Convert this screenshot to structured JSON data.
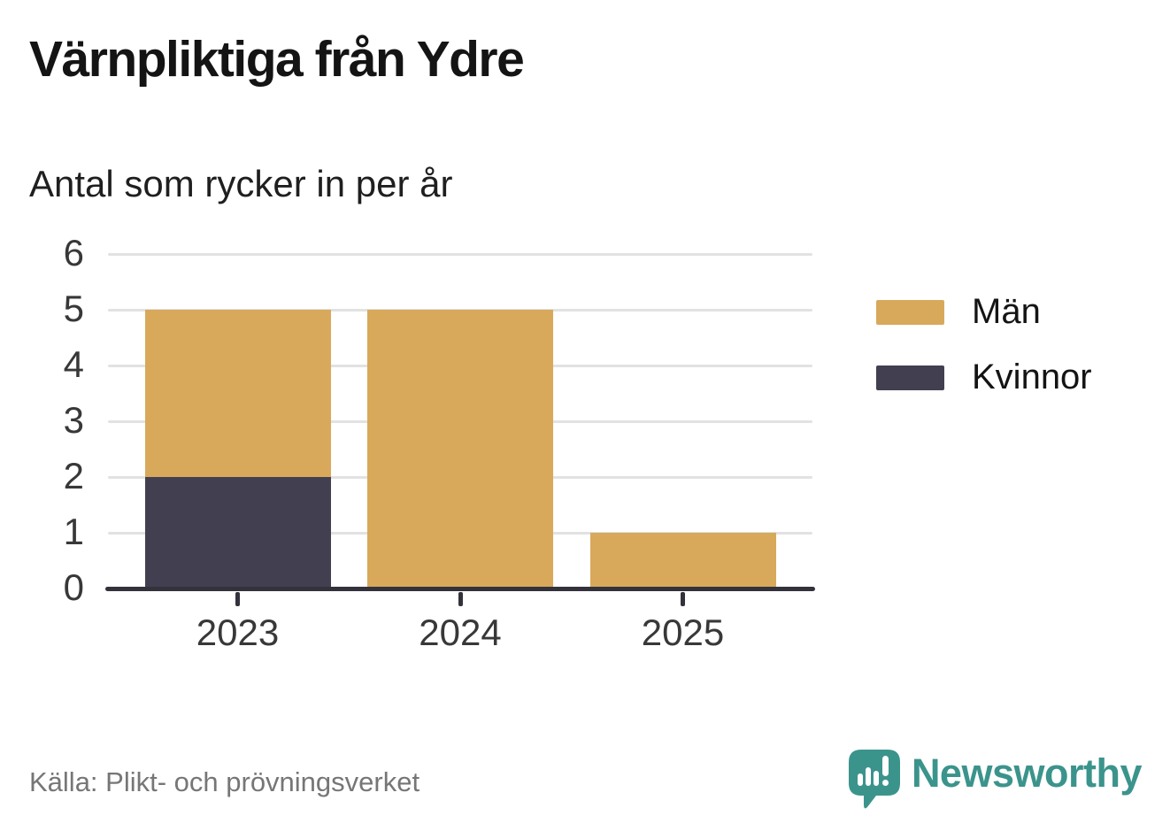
{
  "header": {
    "title": "Värnpliktiga från Ydre",
    "subtitle": "Antal som rycker in per år"
  },
  "chart_data": {
    "type": "bar",
    "stacked": true,
    "categories": [
      "2023",
      "2024",
      "2025"
    ],
    "series": [
      {
        "name": "Män",
        "color": "#d8a95b",
        "values": [
          3,
          5,
          1
        ]
      },
      {
        "name": "Kvinnor",
        "color": "#423f50",
        "values": [
          2,
          0,
          0
        ]
      }
    ],
    "stack_totals": [
      5,
      5,
      1
    ],
    "title": "Värnpliktiga från Ydre",
    "subtitle": "Antal som rycker in per år",
    "xlabel": "",
    "ylabel": "",
    "ylim": [
      0,
      6
    ],
    "yticks": [
      0,
      1,
      2,
      3,
      4,
      5,
      6
    ],
    "grid": true,
    "legend_position": "right"
  },
  "footer": {
    "source": "Källa: Plikt- och prövningsverket",
    "brand": "Newsworthy"
  },
  "colors": {
    "men": "#d8a95b",
    "women": "#423f50",
    "brand_teal": "#3b948c",
    "axis": "#33323c",
    "gridline": "#e2e2e2"
  }
}
